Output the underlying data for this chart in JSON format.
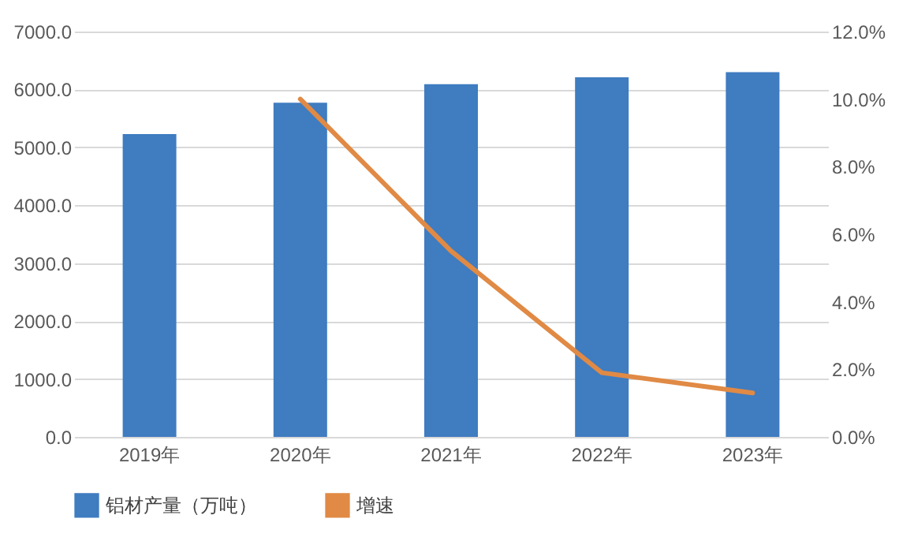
{
  "chart_data": {
    "type": "bar",
    "categories": [
      "2019年",
      "2020年",
      "2021年",
      "2022年",
      "2023年"
    ],
    "series": [
      {
        "name": "铝材产量（万吨）",
        "color": "#3f7cc0",
        "values": [
          5230,
          5770,
          6090,
          6210,
          6300
        ]
      },
      {
        "name": "增速",
        "type": "line",
        "axis": "y2",
        "color": "#e08a45",
        "values": [
          null,
          10.0,
          5.5,
          1.9,
          1.3
        ]
      }
    ],
    "ylim": [
      0,
      7000
    ],
    "yticks": [
      {
        "value": 0,
        "label": "0.0"
      },
      {
        "value": 1000,
        "label": "1000.0"
      },
      {
        "value": 2000,
        "label": "2000.0"
      },
      {
        "value": 3000,
        "label": "3000.0"
      },
      {
        "value": 4000,
        "label": "4000.0"
      },
      {
        "value": 5000,
        "label": "5000.0"
      },
      {
        "value": 6000,
        "label": "6000.0"
      },
      {
        "value": 7000,
        "label": "7000.0"
      }
    ],
    "y2lim": [
      0,
      12
    ],
    "y2ticks": [
      {
        "value": 0,
        "label": "0.0%"
      },
      {
        "value": 2,
        "label": "2.0%"
      },
      {
        "value": 4,
        "label": "4.0%"
      },
      {
        "value": 6,
        "label": "6.0%"
      },
      {
        "value": 8,
        "label": "8.0%"
      },
      {
        "value": 10,
        "label": "10.0%"
      },
      {
        "value": 12,
        "label": "12.0%"
      }
    ],
    "grid": "y",
    "legend": "bottom",
    "marker": "none",
    "line_style": "solid"
  }
}
